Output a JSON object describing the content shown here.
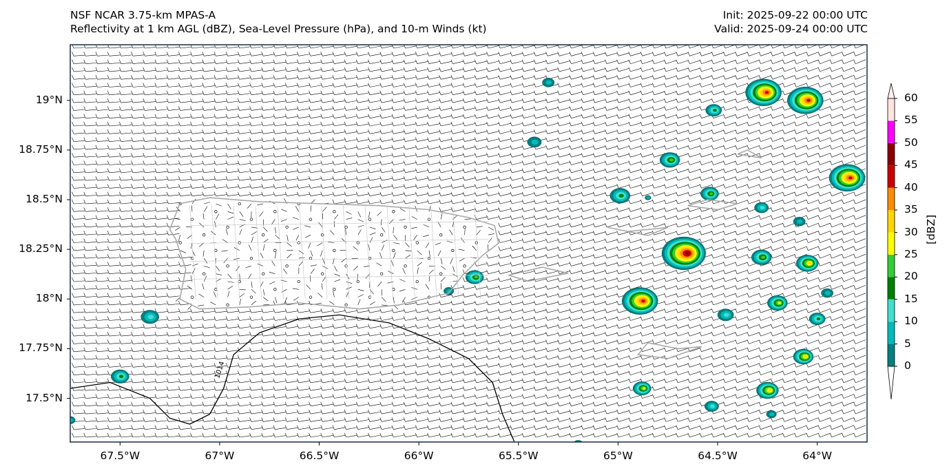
{
  "header": {
    "model": "NSF NCAR 3.75-km MPAS-A",
    "fields": "Reflectivity at 1 km AGL (dBZ), Sea-Level Pressure (hPa), and 10-m Winds (kt)",
    "init": "Init: 2025-09-22 00:00 UTC",
    "valid": "Valid: 2025-09-24 00:00 UTC"
  },
  "axes": {
    "lon_range": [
      -67.75,
      -63.75
    ],
    "lat_range": [
      17.28,
      19.28
    ],
    "x_ticks": [
      {
        "value": -67.5,
        "label": "67.5°W"
      },
      {
        "value": -67.0,
        "label": "67°W"
      },
      {
        "value": -66.5,
        "label": "66.5°W"
      },
      {
        "value": -66.0,
        "label": "66°W"
      },
      {
        "value": -65.5,
        "label": "65.5°W"
      },
      {
        "value": -65.0,
        "label": "65°W"
      },
      {
        "value": -64.5,
        "label": "64.5°W"
      },
      {
        "value": -64.0,
        "label": "64°W"
      }
    ],
    "y_ticks": [
      {
        "value": 19.0,
        "label": "19°N"
      },
      {
        "value": 18.75,
        "label": "18.75°N"
      },
      {
        "value": 18.5,
        "label": "18.5°N"
      },
      {
        "value": 18.25,
        "label": "18.25°N"
      },
      {
        "value": 18.0,
        "label": "18°N"
      },
      {
        "value": 17.75,
        "label": "17.75°N"
      },
      {
        "value": 17.5,
        "label": "17.5°N"
      }
    ]
  },
  "colorbar": {
    "title": "[dBZ]",
    "levels": [
      "0",
      "5",
      "10",
      "15",
      "20",
      "25",
      "30",
      "35",
      "40",
      "45",
      "50",
      "55",
      "60"
    ],
    "colors": [
      "#008080",
      "#00bbbb",
      "#40e0d0",
      "#008000",
      "#32cd32",
      "#ffff00",
      "#ffd700",
      "#ff8c00",
      "#cc0000",
      "#8b0000",
      "#ff00ff",
      "#ffe4e1"
    ]
  },
  "pressure": {
    "contour_label": "1014",
    "contour_path": [
      [
        -67.75,
        17.55
      ],
      [
        -67.55,
        17.58
      ],
      [
        -67.35,
        17.5
      ],
      [
        -67.25,
        17.4
      ],
      [
        -67.15,
        17.37
      ],
      [
        -67.05,
        17.42
      ],
      [
        -66.98,
        17.55
      ],
      [
        -66.93,
        17.72
      ],
      [
        -66.8,
        17.83
      ],
      [
        -66.6,
        17.9
      ],
      [
        -66.4,
        17.92
      ],
      [
        -66.15,
        17.88
      ],
      [
        -65.95,
        17.8
      ],
      [
        -65.75,
        17.7
      ],
      [
        -65.63,
        17.58
      ],
      [
        -65.58,
        17.42
      ],
      [
        -65.52,
        17.28
      ]
    ]
  },
  "reflectivity_cells": [
    {
      "lon": -67.35,
      "lat": 17.91,
      "r": 0.045,
      "peak": 15
    },
    {
      "lon": -67.5,
      "lat": 17.61,
      "r": 0.045,
      "peak": 20
    },
    {
      "lon": -67.75,
      "lat": 17.39,
      "r": 0.025,
      "peak": 10
    },
    {
      "lon": -65.35,
      "lat": 19.09,
      "r": 0.03,
      "peak": 10
    },
    {
      "lon": -65.42,
      "lat": 18.79,
      "r": 0.035,
      "peak": 10
    },
    {
      "lon": -65.72,
      "lat": 18.11,
      "r": 0.045,
      "peak": 25
    },
    {
      "lon": -65.85,
      "lat": 18.04,
      "r": 0.025,
      "peak": 10
    },
    {
      "lon": -64.74,
      "lat": 18.7,
      "r": 0.05,
      "peak": 25
    },
    {
      "lon": -64.99,
      "lat": 18.52,
      "r": 0.05,
      "peak": 20
    },
    {
      "lon": -64.54,
      "lat": 18.53,
      "r": 0.045,
      "peak": 25
    },
    {
      "lon": -64.67,
      "lat": 18.23,
      "r": 0.11,
      "peak": 50
    },
    {
      "lon": -64.89,
      "lat": 17.99,
      "r": 0.09,
      "peak": 45
    },
    {
      "lon": -64.46,
      "lat": 17.92,
      "r": 0.04,
      "peak": 15
    },
    {
      "lon": -64.28,
      "lat": 18.21,
      "r": 0.05,
      "peak": 25
    },
    {
      "lon": -64.28,
      "lat": 18.46,
      "r": 0.035,
      "peak": 15
    },
    {
      "lon": -64.09,
      "lat": 18.39,
      "r": 0.03,
      "peak": 10
    },
    {
      "lon": -64.05,
      "lat": 18.18,
      "r": 0.055,
      "peak": 35
    },
    {
      "lon": -64.2,
      "lat": 17.98,
      "r": 0.05,
      "peak": 30
    },
    {
      "lon": -64.0,
      "lat": 17.9,
      "r": 0.04,
      "peak": 20
    },
    {
      "lon": -64.07,
      "lat": 17.71,
      "r": 0.05,
      "peak": 35
    },
    {
      "lon": -64.25,
      "lat": 17.54,
      "r": 0.055,
      "peak": 35
    },
    {
      "lon": -64.23,
      "lat": 17.42,
      "r": 0.025,
      "peak": 10
    },
    {
      "lon": -64.53,
      "lat": 17.46,
      "r": 0.035,
      "peak": 15
    },
    {
      "lon": -64.88,
      "lat": 17.55,
      "r": 0.045,
      "peak": 30
    },
    {
      "lon": -65.2,
      "lat": 17.27,
      "r": 0.025,
      "peak": 10
    },
    {
      "lon": -64.52,
      "lat": 18.95,
      "r": 0.04,
      "peak": 20
    },
    {
      "lon": -64.27,
      "lat": 19.04,
      "r": 0.09,
      "peak": 45
    },
    {
      "lon": -64.06,
      "lat": 19.0,
      "r": 0.09,
      "peak": 45
    },
    {
      "lon": -63.85,
      "lat": 18.61,
      "r": 0.09,
      "peak": 45
    },
    {
      "lon": -63.95,
      "lat": 18.03,
      "r": 0.03,
      "peak": 10
    },
    {
      "lon": -64.85,
      "lat": 18.51,
      "r": 0.015,
      "peak": 10
    }
  ],
  "coastlines": [
    [
      [
        -67.25,
        18.35
      ],
      [
        -67.2,
        18.48
      ],
      [
        -67.05,
        18.51
      ],
      [
        -66.8,
        18.49
      ],
      [
        -66.5,
        18.48
      ],
      [
        -66.2,
        18.47
      ],
      [
        -65.95,
        18.45
      ],
      [
        -65.75,
        18.41
      ],
      [
        -65.62,
        18.37
      ],
      [
        -65.6,
        18.28
      ],
      [
        -65.68,
        18.22
      ],
      [
        -65.78,
        18.12
      ],
      [
        -65.85,
        18.03
      ],
      [
        -66.1,
        17.97
      ],
      [
        -66.3,
        17.95
      ],
      [
        -66.6,
        17.98
      ],
      [
        -66.85,
        17.96
      ],
      [
        -67.1,
        17.95
      ],
      [
        -67.2,
        18.0
      ],
      [
        -67.17,
        18.15
      ],
      [
        -67.22,
        18.3
      ],
      [
        -67.25,
        18.35
      ]
    ],
    [
      [
        -65.55,
        18.12
      ],
      [
        -65.38,
        18.16
      ],
      [
        -65.25,
        18.13
      ],
      [
        -65.45,
        18.09
      ],
      [
        -65.55,
        18.12
      ]
    ],
    [
      [
        -65.05,
        18.36
      ],
      [
        -64.85,
        18.32
      ],
      [
        -64.75,
        18.36
      ],
      [
        -64.95,
        18.34
      ],
      [
        -65.05,
        18.36
      ]
    ],
    [
      [
        -64.85,
        17.78
      ],
      [
        -64.7,
        17.75
      ],
      [
        -64.58,
        17.76
      ],
      [
        -64.75,
        17.7
      ],
      [
        -64.9,
        17.72
      ],
      [
        -64.85,
        17.78
      ]
    ],
    [
      [
        -64.65,
        18.47
      ],
      [
        -64.55,
        18.5
      ],
      [
        -64.4,
        18.48
      ],
      [
        -64.5,
        18.45
      ],
      [
        -64.65,
        18.47
      ]
    ],
    [
      [
        -64.4,
        18.73
      ],
      [
        -64.28,
        18.71
      ],
      [
        -64.35,
        18.75
      ],
      [
        -64.4,
        18.73
      ]
    ]
  ],
  "wind_field": {
    "mean_direction_deg": 95,
    "description": "10-m wind barbs on regular grid; calm circles over interior Puerto Rico"
  }
}
